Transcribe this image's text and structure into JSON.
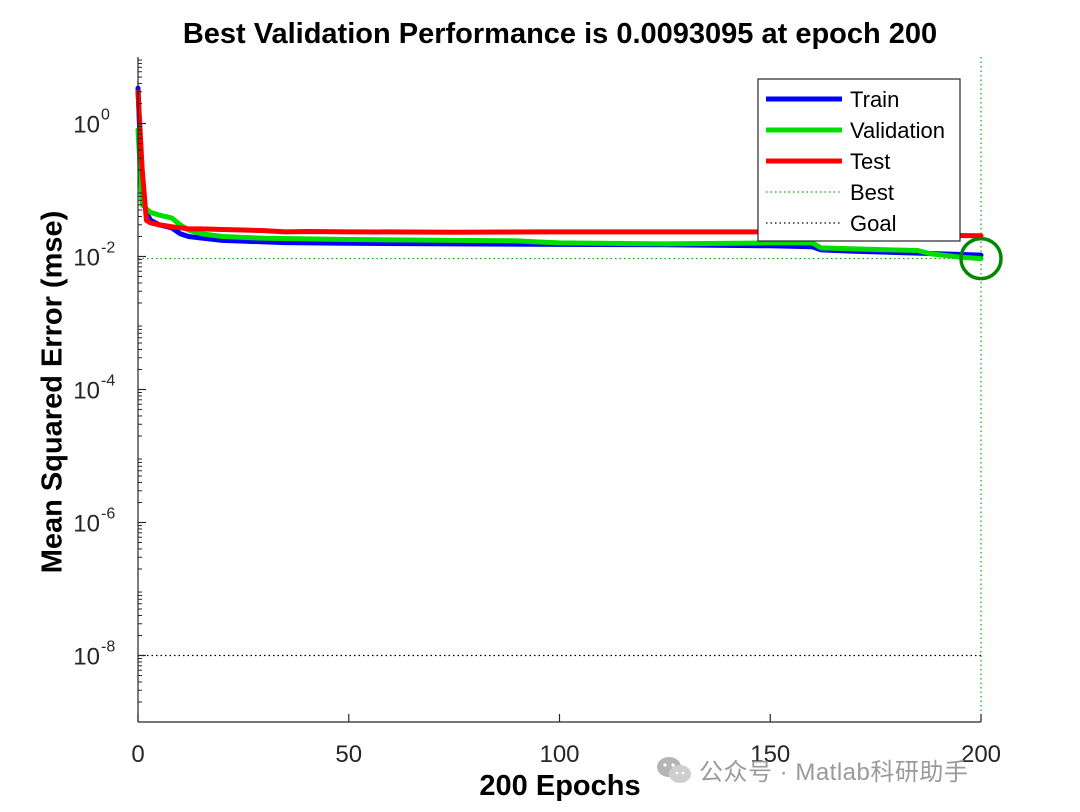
{
  "watermark": {
    "icon": "wechat-icon",
    "text": "公众号 · Matlab科研助手"
  },
  "chart_data": {
    "type": "line",
    "title": "Best Validation Performance is 0.0093095 at epoch 200",
    "xlabel": "200 Epochs",
    "ylabel": "Mean Squared Error  (mse)",
    "xlim": [
      0,
      200
    ],
    "ylim": [
      1e-09,
      10
    ],
    "yscale": "log",
    "xticks": [
      0,
      50,
      100,
      150,
      200
    ],
    "xtick_labels": [
      "0",
      "50",
      "100",
      "150",
      "200"
    ],
    "yticks": [
      1e-08,
      1e-06,
      0.0001,
      0.01,
      1
    ],
    "ytick_labels": [
      {
        "base": "10",
        "exp": "-8"
      },
      {
        "base": "10",
        "exp": "-6"
      },
      {
        "base": "10",
        "exp": "-4"
      },
      {
        "base": "10",
        "exp": "-2"
      },
      {
        "base": "10",
        "exp": "0"
      }
    ],
    "legend_position": "top-right",
    "series": [
      {
        "name": "Train",
        "color": "#0000ff",
        "style": "solid",
        "points": [
          [
            0,
            3.4
          ],
          [
            1,
            0.08
          ],
          [
            2,
            0.045
          ],
          [
            3,
            0.035
          ],
          [
            5,
            0.03
          ],
          [
            8,
            0.027
          ],
          [
            10,
            0.022
          ],
          [
            12,
            0.02
          ],
          [
            15,
            0.019
          ],
          [
            20,
            0.0175
          ],
          [
            25,
            0.017
          ],
          [
            35,
            0.0162
          ],
          [
            50,
            0.0158
          ],
          [
            75,
            0.0155
          ],
          [
            100,
            0.0152
          ],
          [
            125,
            0.015
          ],
          [
            150,
            0.0145
          ],
          [
            160,
            0.014
          ],
          [
            162,
            0.0126
          ],
          [
            170,
            0.012
          ],
          [
            180,
            0.0115
          ],
          [
            190,
            0.011
          ],
          [
            200,
            0.0105
          ]
        ]
      },
      {
        "name": "Validation",
        "color": "#00dd00",
        "style": "solid",
        "points": [
          [
            0,
            0.8
          ],
          [
            1,
            0.06
          ],
          [
            2,
            0.052
          ],
          [
            3,
            0.046
          ],
          [
            5,
            0.042
          ],
          [
            8,
            0.038
          ],
          [
            10,
            0.03
          ],
          [
            12,
            0.025
          ],
          [
            15,
            0.022
          ],
          [
            20,
            0.02
          ],
          [
            30,
            0.0188
          ],
          [
            50,
            0.018
          ],
          [
            75,
            0.0175
          ],
          [
            90,
            0.0172
          ],
          [
            95,
            0.0165
          ],
          [
            100,
            0.016
          ],
          [
            125,
            0.0155
          ],
          [
            150,
            0.016
          ],
          [
            160,
            0.016
          ],
          [
            162,
            0.0135
          ],
          [
            170,
            0.013
          ],
          [
            180,
            0.0125
          ],
          [
            185,
            0.0123
          ],
          [
            188,
            0.011
          ],
          [
            195,
            0.0098
          ],
          [
            200,
            0.0093095
          ]
        ]
      },
      {
        "name": "Test",
        "color": "#ff0000",
        "style": "solid",
        "points": [
          [
            0,
            3.0
          ],
          [
            1,
            0.2
          ],
          [
            2,
            0.035
          ],
          [
            3,
            0.032
          ],
          [
            5,
            0.03
          ],
          [
            8,
            0.028
          ],
          [
            10,
            0.027
          ],
          [
            12,
            0.026
          ],
          [
            15,
            0.026
          ],
          [
            20,
            0.0255
          ],
          [
            25,
            0.025
          ],
          [
            30,
            0.0245
          ],
          [
            35,
            0.0235
          ],
          [
            40,
            0.0238
          ],
          [
            50,
            0.0235
          ],
          [
            75,
            0.0232
          ],
          [
            100,
            0.0235
          ],
          [
            125,
            0.0235
          ],
          [
            150,
            0.0235
          ],
          [
            160,
            0.0225
          ],
          [
            170,
            0.0222
          ],
          [
            180,
            0.0218
          ],
          [
            190,
            0.0208
          ],
          [
            200,
            0.0205
          ]
        ]
      }
    ],
    "reference_lines": [
      {
        "name": "Best",
        "color": "#00aa00",
        "style": "dotted",
        "y": 0.0093095,
        "x": 200
      },
      {
        "name": "Goal",
        "color": "#000000",
        "style": "dotted",
        "y": 1e-08
      }
    ],
    "best_marker": {
      "x": 200,
      "y": 0.0093095,
      "color": "#008800"
    }
  }
}
